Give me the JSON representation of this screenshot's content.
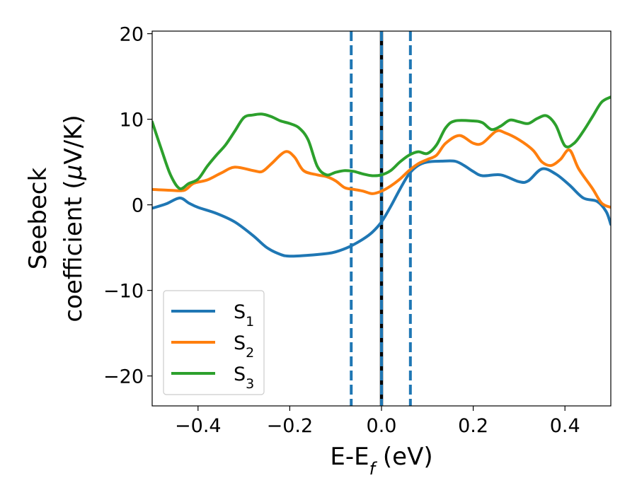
{
  "chart_data": {
    "type": "line",
    "xlabel": {
      "main": "E-E",
      "sub": "f",
      "unit": " (eV)"
    },
    "ylabel": {
      "line1": "Seebeck",
      "line2a": "coefficient  (",
      "mu": "μ",
      "line2b": "V/K)"
    },
    "xlim": [
      -0.5,
      0.5
    ],
    "ylim": [
      -23.5,
      20.3
    ],
    "x_ticks": [
      -0.4,
      -0.2,
      0.0,
      0.2,
      0.4
    ],
    "x_tick_labels": [
      "−0.4",
      "−0.2",
      "0.0",
      "0.2",
      "0.4"
    ],
    "y_ticks": [
      20,
      10,
      0,
      -10,
      -20
    ],
    "y_tick_labels": [
      "20",
      "10",
      "0",
      "−10",
      "−20"
    ],
    "grid": false,
    "legend_position": "lower-left",
    "vlines": [
      {
        "x": -0.066,
        "color": "#1f77b4",
        "style": "dashed"
      },
      {
        "x": 0.0,
        "color": "#000000",
        "style": "solid"
      },
      {
        "x": 0.0,
        "color": "#1f77b4",
        "style": "dashed"
      },
      {
        "x": 0.063,
        "color": "#1f77b4",
        "style": "dashed"
      }
    ],
    "series": [
      {
        "name": "S",
        "sub": "1",
        "color": "#1f77b4",
        "points": [
          [
            -0.5,
            -0.4
          ],
          [
            -0.47,
            0.1
          ],
          [
            -0.44,
            0.8
          ],
          [
            -0.42,
            0.2
          ],
          [
            -0.4,
            -0.3
          ],
          [
            -0.36,
            -1.0
          ],
          [
            -0.32,
            -2.0
          ],
          [
            -0.28,
            -3.6
          ],
          [
            -0.25,
            -5.0
          ],
          [
            -0.22,
            -5.8
          ],
          [
            -0.2,
            -6.0
          ],
          [
            -0.16,
            -5.9
          ],
          [
            -0.12,
            -5.7
          ],
          [
            -0.1,
            -5.5
          ],
          [
            -0.07,
            -4.9
          ],
          [
            -0.04,
            -4.0
          ],
          [
            -0.02,
            -3.2
          ],
          [
            0.0,
            -2.0
          ],
          [
            0.02,
            -0.2
          ],
          [
            0.04,
            1.8
          ],
          [
            0.06,
            3.6
          ],
          [
            0.08,
            4.6
          ],
          [
            0.1,
            5.0
          ],
          [
            0.13,
            5.1
          ],
          [
            0.16,
            5.1
          ],
          [
            0.18,
            4.6
          ],
          [
            0.2,
            3.9
          ],
          [
            0.22,
            3.4
          ],
          [
            0.26,
            3.5
          ],
          [
            0.3,
            2.7
          ],
          [
            0.32,
            2.8
          ],
          [
            0.35,
            4.2
          ],
          [
            0.38,
            3.6
          ],
          [
            0.41,
            2.3
          ],
          [
            0.44,
            0.8
          ],
          [
            0.47,
            0.4
          ],
          [
            0.49,
            -0.8
          ],
          [
            0.5,
            -2.3
          ]
        ]
      },
      {
        "name": "S",
        "sub": "2",
        "color": "#ff7f0e",
        "points": [
          [
            -0.5,
            1.8
          ],
          [
            -0.46,
            1.7
          ],
          [
            -0.43,
            1.7
          ],
          [
            -0.41,
            2.5
          ],
          [
            -0.38,
            2.9
          ],
          [
            -0.35,
            3.7
          ],
          [
            -0.32,
            4.4
          ],
          [
            -0.28,
            4.0
          ],
          [
            -0.26,
            3.9
          ],
          [
            -0.24,
            4.8
          ],
          [
            -0.21,
            6.2
          ],
          [
            -0.19,
            5.6
          ],
          [
            -0.17,
            4.0
          ],
          [
            -0.14,
            3.5
          ],
          [
            -0.12,
            3.3
          ],
          [
            -0.1,
            2.8
          ],
          [
            -0.08,
            2.0
          ],
          [
            -0.06,
            1.8
          ],
          [
            -0.04,
            1.6
          ],
          [
            -0.02,
            1.3
          ],
          [
            0.0,
            1.6
          ],
          [
            0.02,
            2.2
          ],
          [
            0.04,
            3.0
          ],
          [
            0.06,
            4.0
          ],
          [
            0.08,
            4.8
          ],
          [
            0.1,
            5.3
          ],
          [
            0.12,
            5.8
          ],
          [
            0.14,
            7.2
          ],
          [
            0.17,
            8.1
          ],
          [
            0.2,
            7.2
          ],
          [
            0.22,
            7.2
          ],
          [
            0.25,
            8.6
          ],
          [
            0.27,
            8.4
          ],
          [
            0.3,
            7.6
          ],
          [
            0.33,
            6.4
          ],
          [
            0.35,
            5.0
          ],
          [
            0.37,
            4.6
          ],
          [
            0.39,
            5.3
          ],
          [
            0.41,
            6.4
          ],
          [
            0.43,
            4.2
          ],
          [
            0.46,
            1.9
          ],
          [
            0.48,
            0.2
          ],
          [
            0.5,
            -0.3
          ]
        ]
      },
      {
        "name": "S",
        "sub": "3",
        "color": "#2ca02c",
        "points": [
          [
            -0.5,
            9.7
          ],
          [
            -0.48,
            6.5
          ],
          [
            -0.46,
            3.5
          ],
          [
            -0.44,
            1.9
          ],
          [
            -0.42,
            2.5
          ],
          [
            -0.4,
            3.0
          ],
          [
            -0.38,
            4.5
          ],
          [
            -0.36,
            5.8
          ],
          [
            -0.34,
            7.0
          ],
          [
            -0.32,
            8.6
          ],
          [
            -0.3,
            10.2
          ],
          [
            -0.28,
            10.5
          ],
          [
            -0.26,
            10.6
          ],
          [
            -0.24,
            10.3
          ],
          [
            -0.22,
            9.8
          ],
          [
            -0.2,
            9.5
          ],
          [
            -0.18,
            9.0
          ],
          [
            -0.16,
            7.6
          ],
          [
            -0.14,
            4.5
          ],
          [
            -0.12,
            3.5
          ],
          [
            -0.1,
            3.8
          ],
          [
            -0.08,
            4.0
          ],
          [
            -0.06,
            3.9
          ],
          [
            -0.04,
            3.6
          ],
          [
            -0.02,
            3.4
          ],
          [
            0.0,
            3.5
          ],
          [
            0.02,
            4.0
          ],
          [
            0.04,
            5.0
          ],
          [
            0.06,
            5.8
          ],
          [
            0.08,
            6.2
          ],
          [
            0.1,
            6.0
          ],
          [
            0.12,
            7.0
          ],
          [
            0.14,
            9.0
          ],
          [
            0.16,
            9.8
          ],
          [
            0.2,
            9.8
          ],
          [
            0.22,
            9.6
          ],
          [
            0.24,
            8.8
          ],
          [
            0.26,
            9.2
          ],
          [
            0.28,
            9.9
          ],
          [
            0.3,
            9.7
          ],
          [
            0.32,
            9.5
          ],
          [
            0.34,
            10.1
          ],
          [
            0.36,
            10.4
          ],
          [
            0.38,
            9.3
          ],
          [
            0.4,
            6.9
          ],
          [
            0.42,
            7.2
          ],
          [
            0.44,
            8.6
          ],
          [
            0.46,
            10.3
          ],
          [
            0.48,
            12.0
          ],
          [
            0.5,
            12.6
          ]
        ]
      }
    ]
  }
}
